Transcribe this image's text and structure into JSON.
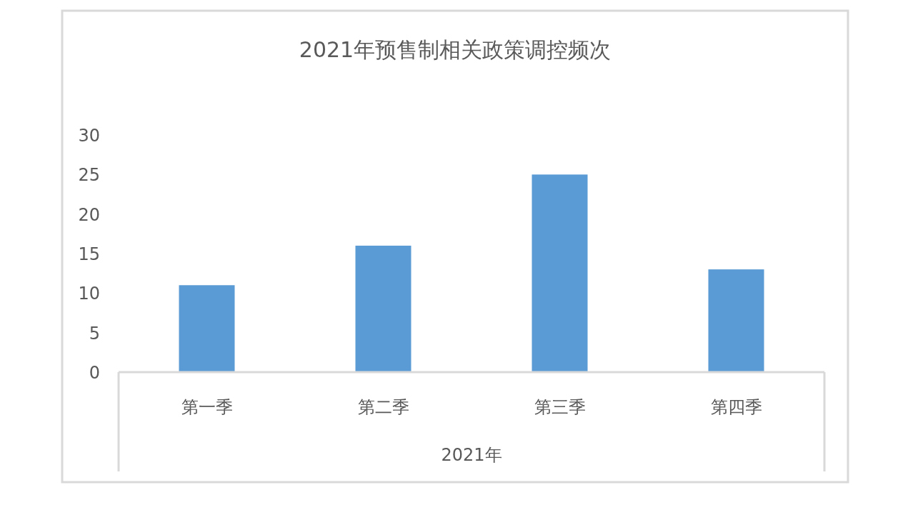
{
  "chart_data": {
    "type": "bar",
    "title": "2021年预售制相关政策调控频次",
    "categories": [
      "第一季",
      "第二季",
      "第三季",
      "第四季"
    ],
    "values": [
      11,
      16,
      25,
      13
    ],
    "color": "#5b9bd5",
    "xlabel": "2021年",
    "ylim": [
      0,
      30
    ],
    "yticks": [
      0,
      5,
      10,
      15,
      20,
      25,
      30
    ]
  }
}
